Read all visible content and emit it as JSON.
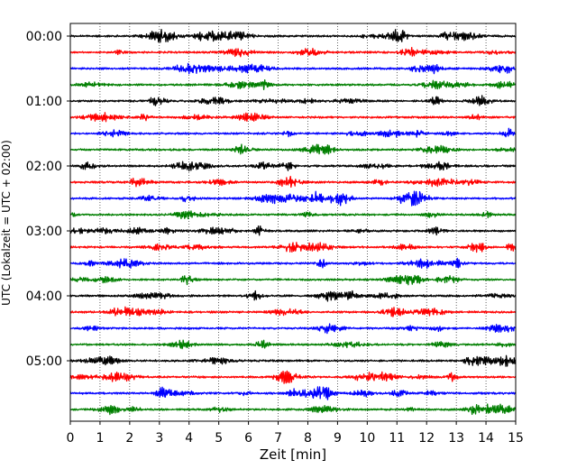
{
  "chart_data": {
    "type": "line",
    "title": "",
    "xlabel": "Zeit  [min]",
    "ylabel": "UTC (Lokalzeit = UTC + 02:00)",
    "xlim": [
      0,
      15
    ],
    "x_ticks": [
      "0",
      "1",
      "2",
      "3",
      "4",
      "5",
      "6",
      "7",
      "8",
      "9",
      "10",
      "11",
      "12",
      "13",
      "14",
      "15"
    ],
    "y_ticks": [
      "00:00",
      "01:00",
      "02:00",
      "03:00",
      "04:00",
      "05:00"
    ],
    "grid": "vertical dotted lines at each minute",
    "trace_interval_min": 15,
    "trace_count": 24,
    "trace_colors": [
      "#000000",
      "#ff0000",
      "#0000ff",
      "#007f00"
    ],
    "traces_start": "00:00",
    "traces_end": "05:45"
  }
}
